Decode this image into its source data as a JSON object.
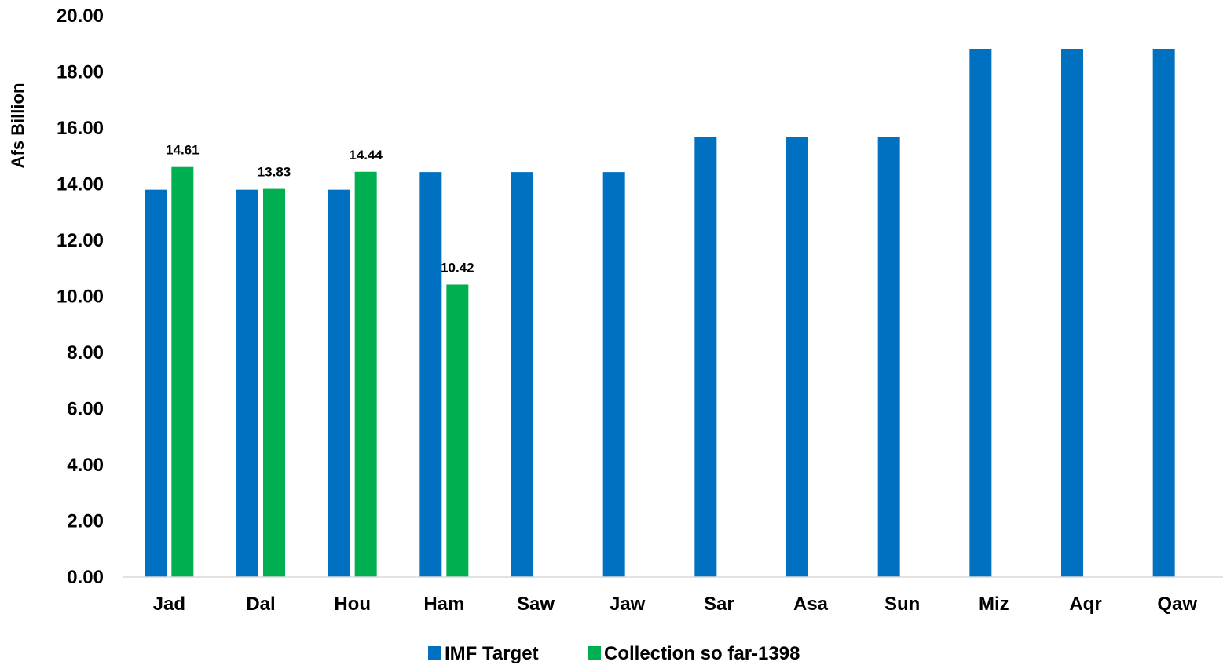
{
  "chart_data": {
    "type": "bar",
    "ylabel": "Afs Billion",
    "xlabel": "",
    "title": "",
    "ylim": [
      0,
      20
    ],
    "ytick_step": 2,
    "ytick_format_decimals": 2,
    "grid": false,
    "legend_position": "bottom",
    "categories": [
      "Jad",
      "Dal",
      "Hou",
      "Ham",
      "Saw",
      "Jaw",
      "Sar",
      "Asa",
      "Sun",
      "Miz",
      "Aqr",
      "Qaw"
    ],
    "series": [
      {
        "name": "IMF Target",
        "color": "#0070C0",
        "values": [
          13.8,
          13.8,
          13.8,
          14.43,
          14.43,
          14.43,
          15.68,
          15.68,
          15.68,
          18.82,
          18.82,
          18.82
        ],
        "show_labels": false
      },
      {
        "name": "Collection so far-1398",
        "color": "#00B050",
        "values": [
          14.61,
          13.83,
          14.44,
          10.42,
          null,
          null,
          null,
          null,
          null,
          null,
          null,
          null
        ],
        "show_labels": true
      }
    ]
  }
}
